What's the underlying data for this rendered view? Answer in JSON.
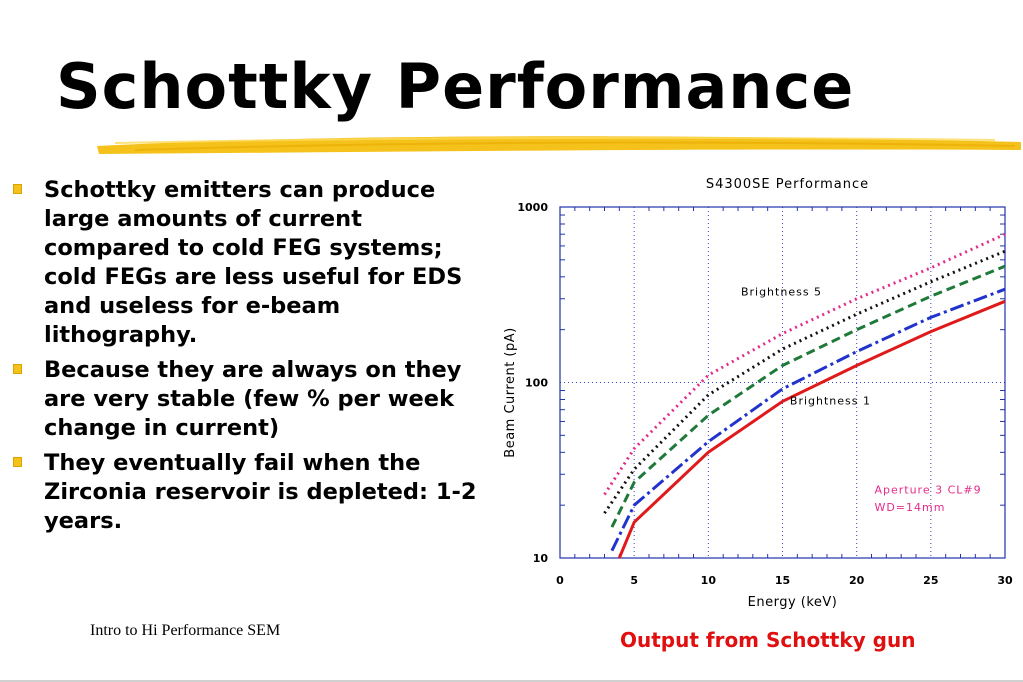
{
  "slide": {
    "title": "Schottky Performance",
    "footer": "Intro to Hi Performance SEM",
    "caption": "Output from Schottky gun",
    "bullets": [
      "Schottky emitters can produce large amounts of current compared to cold FEG systems; cold FEGs are less useful for EDS and useless for e-beam lithography.",
      "Because they are always on they are very stable (few % per week change in current)",
      "They eventually fail when the Zirconia reservoir is depleted: 1-2 years."
    ],
    "colors": {
      "bullet": "#f4c21a",
      "title_underline": "#f4c21a",
      "caption": "#e01010"
    }
  },
  "chart_data": {
    "type": "line",
    "title": "S4300SE Performance",
    "xlabel": "Energy (keV)",
    "ylabel": "Beam Current (pA)",
    "xlim": [
      0,
      30
    ],
    "ylim": [
      10,
      1000
    ],
    "yscale": "log",
    "grid": true,
    "x_ticks": [
      "0",
      "5",
      "10",
      "15",
      "20",
      "25",
      "30"
    ],
    "y_ticks": [
      "10",
      "100",
      "1000"
    ],
    "annotations": [
      "Brightness 5",
      "Brightness 1",
      "Aperture 3 CL#9",
      "WD=14mm"
    ],
    "series": [
      {
        "color": "#e52b8a",
        "style": "dotted",
        "x": [
          3,
          5,
          10,
          15,
          20,
          25,
          30
        ],
        "y": [
          23,
          42,
          110,
          190,
          300,
          450,
          700
        ]
      },
      {
        "color": "#111111",
        "style": "dotted",
        "x": [
          3,
          5,
          10,
          15,
          20,
          25,
          30
        ],
        "y": [
          18,
          32,
          85,
          155,
          245,
          375,
          560
        ]
      },
      {
        "color": "#1f7a3a",
        "style": "dashed",
        "x": [
          3.5,
          5,
          10,
          15,
          20,
          25,
          30
        ],
        "y": [
          15,
          27,
          65,
          125,
          200,
          310,
          460
        ]
      },
      {
        "color": "#2233cc",
        "style": "dashdot",
        "x": [
          3.5,
          5,
          10,
          15,
          20,
          25,
          30
        ],
        "y": [
          11,
          20,
          46,
          92,
          150,
          235,
          340
        ]
      },
      {
        "color": "#e01a1a",
        "style": "solid",
        "x": [
          4,
          5,
          10,
          15,
          20,
          25,
          30
        ],
        "y": [
          10,
          16,
          40,
          78,
          125,
          195,
          290
        ]
      }
    ]
  }
}
